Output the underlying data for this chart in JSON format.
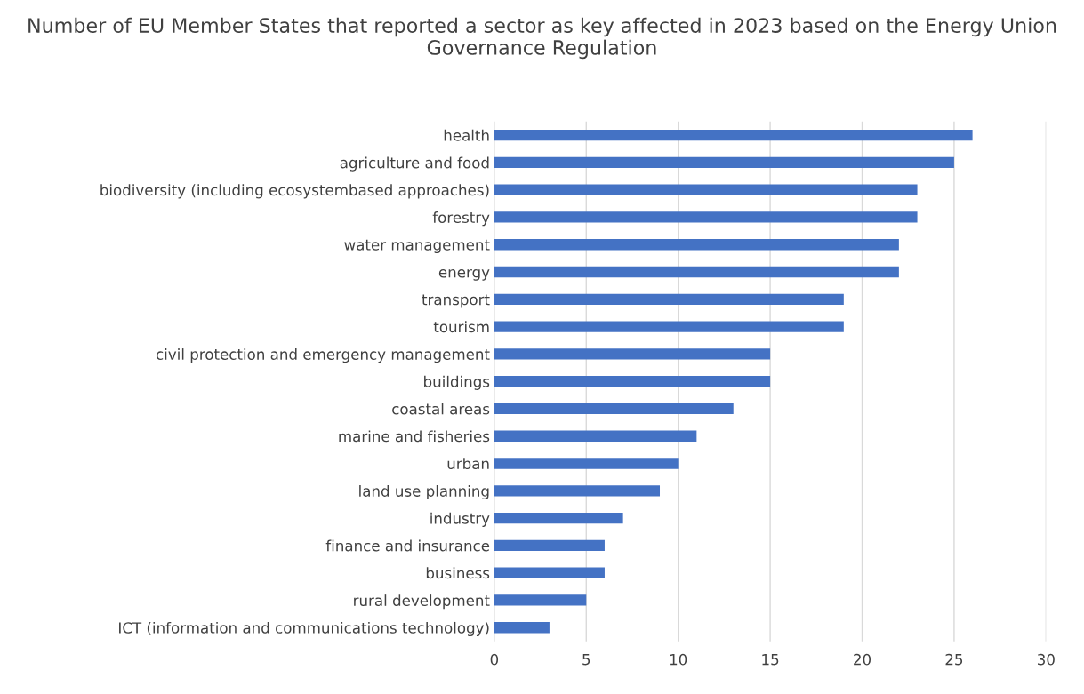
{
  "chart_data": {
    "type": "bar",
    "orientation": "horizontal",
    "title": "Number of EU Member States that reported a sector as key affected in 2023 based on the Energy Union Governance Regulation",
    "categories": [
      "health",
      "agriculture and food",
      "biodiversity (including ecosystembased approaches)",
      "forestry",
      "water management",
      "energy",
      "transport",
      "tourism",
      "civil protection and emergency management",
      "buildings",
      "coastal areas",
      "marine and fisheries",
      "urban",
      "land use planning",
      "industry",
      "finance and insurance",
      "business",
      "rural development",
      "ICT (information and communications technology)"
    ],
    "values": [
      26,
      25,
      23,
      23,
      22,
      22,
      19,
      19,
      15,
      15,
      13,
      11,
      10,
      9,
      7,
      6,
      6,
      5,
      3
    ],
    "color": "#4472c4",
    "xlim": [
      0,
      30
    ],
    "xticks": [
      0,
      5,
      10,
      15,
      20,
      25,
      30
    ],
    "grid": "x"
  }
}
